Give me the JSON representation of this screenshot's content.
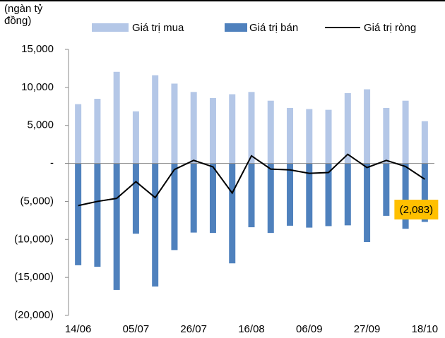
{
  "chart_data": {
    "type": "bar-line",
    "y_label": "(ngàn tỷ đồng)",
    "categories": [
      "14/06",
      null,
      null,
      "05/07",
      null,
      null,
      "26/07",
      null,
      null,
      "16/08",
      null,
      null,
      "06/09",
      null,
      null,
      "27/09",
      null,
      null,
      "18/10"
    ],
    "series": [
      {
        "name": "Giá trị mua",
        "type": "bar",
        "color": "#b4c7e7",
        "values": [
          7800,
          8500,
          12050,
          6850,
          11600,
          10500,
          9400,
          8600,
          9100,
          9400,
          8250,
          7300,
          7150,
          7050,
          9250,
          9750,
          7300,
          8250,
          5550
        ]
      },
      {
        "name": "Giá trị bán",
        "type": "bar",
        "color": "#4f81bd",
        "values": [
          -13400,
          -13600,
          -16650,
          -9250,
          -16200,
          -11400,
          -9100,
          -9150,
          -13150,
          -8400,
          -9150,
          -8200,
          -8450,
          -8250,
          -8150,
          -10350,
          -6900,
          -8600,
          -7700
        ]
      },
      {
        "name": "Giá trị ròng",
        "type": "line",
        "color": "#000000",
        "values": [
          -5550,
          -5000,
          -4600,
          -2400,
          -4500,
          -800,
          400,
          -450,
          -3900,
          1000,
          -750,
          -850,
          -1300,
          -1200,
          1200,
          -550,
          400,
          -400,
          -2083
        ],
        "value_labels": [
          null,
          null,
          null,
          null,
          null,
          null,
          null,
          null,
          null,
          null,
          null,
          null,
          null,
          null,
          null,
          null,
          null,
          null,
          "(2,083)"
        ]
      }
    ],
    "ylim": [
      -20000,
      15000
    ],
    "yticks": [
      {
        "value": -20000,
        "label": "(20,000)"
      },
      {
        "value": -15000,
        "label": "(15,000)"
      },
      {
        "value": -10000,
        "label": "(10,000)"
      },
      {
        "value": -5000,
        "label": "(5,000)"
      },
      {
        "value": 0,
        "label": "-"
      },
      {
        "value": 5000,
        "label": "5,000"
      },
      {
        "value": 10000,
        "label": "10,000"
      },
      {
        "value": 15000,
        "label": "15,000"
      }
    ],
    "grid": false
  }
}
